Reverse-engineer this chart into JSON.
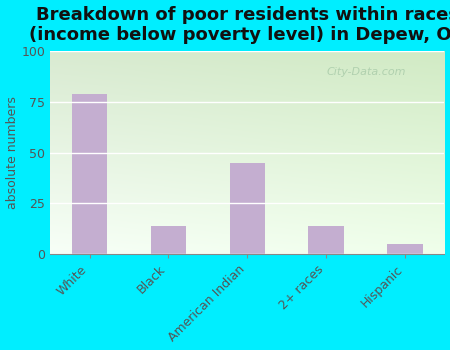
{
  "title": "Breakdown of poor residents within races\n(income below poverty level) in Depew, OK",
  "categories": [
    "White",
    "Black",
    "American Indian",
    "2+ races",
    "Hispanic"
  ],
  "values": [
    79,
    14,
    45,
    14,
    5
  ],
  "bar_color": "#c4aed0",
  "ylabel": "absolute numbers",
  "ylim": [
    0,
    100
  ],
  "yticks": [
    0,
    25,
    50,
    75,
    100
  ],
  "bg_outer": "#00eeff",
  "bg_plot_topleft": "#d6edcc",
  "bg_plot_topright": "#c8e8be",
  "bg_plot_bottom": "#f0fff0",
  "title_fontsize": 13,
  "label_fontsize": 9,
  "tick_fontsize": 9,
  "watermark": "City-Data.com",
  "watermark_color": "#aaccaa",
  "grid_color": "#ffffff",
  "tick_color": "#555555",
  "bar_width": 0.45
}
